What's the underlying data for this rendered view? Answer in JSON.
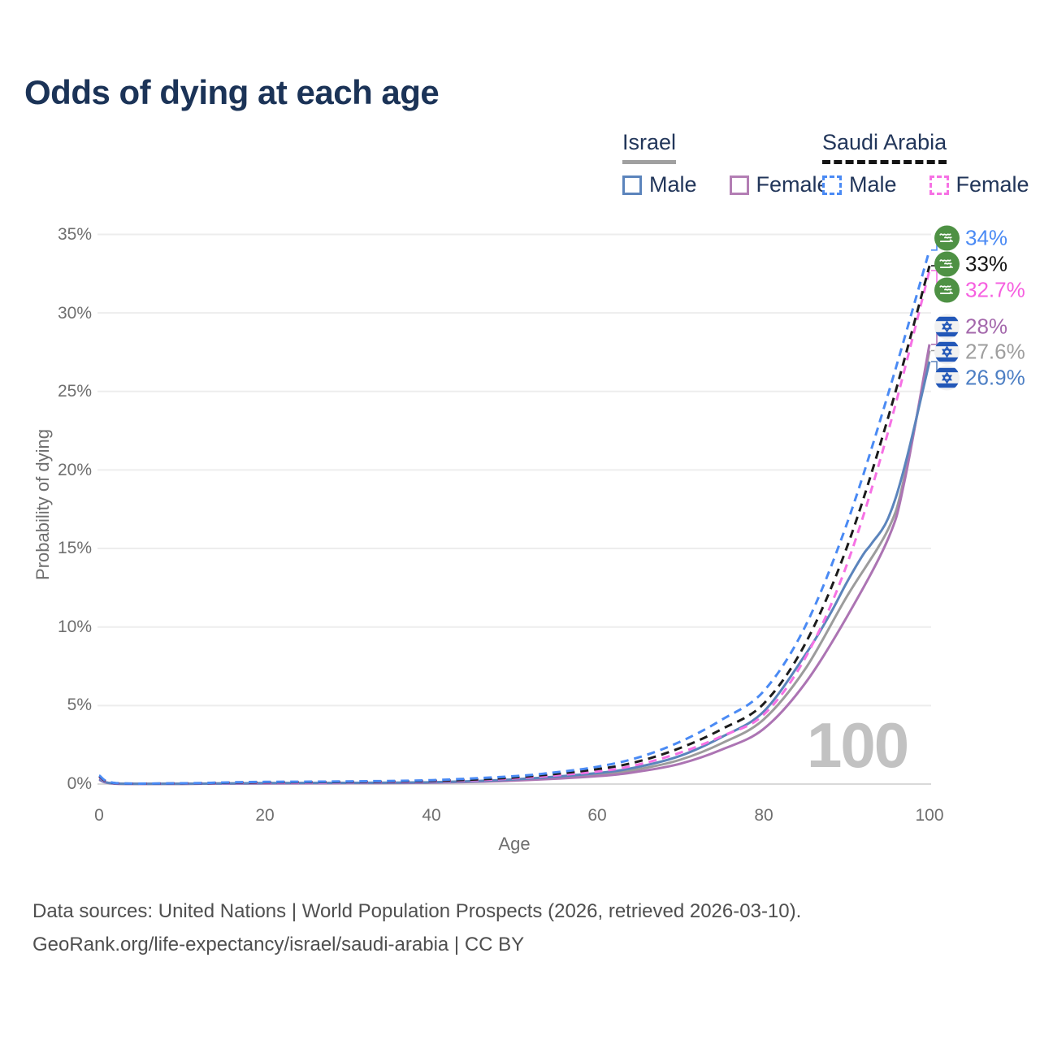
{
  "title": "Odds of dying at each age",
  "legend": {
    "israel": {
      "title": "Israel",
      "line_style": "solid",
      "underline_color": "#a0a0a0",
      "items": [
        {
          "label": "Male",
          "color": "#5b84bc"
        },
        {
          "label": "Female",
          "color": "#b37eb4"
        }
      ]
    },
    "saudi": {
      "title": "Saudi Arabia",
      "line_style": "dashed",
      "underline_color": "#141414",
      "items": [
        {
          "label": "Male",
          "color": "#4a8af4"
        },
        {
          "label": "Female",
          "color": "#f671e4"
        }
      ]
    }
  },
  "watermark": "100",
  "footer": {
    "line1": "Data sources: United Nations | World Population Prospects (2026, retrieved 2026-03-10).",
    "line2": "GeoRank.org/life-expectancy/israel/saudi-arabia | CC BY"
  },
  "colors": {
    "title": "#1b3357",
    "axis_text": "#6f6f6f",
    "gridline": "#ededed",
    "zero_line": "#d9d9d9",
    "watermark": "#c2c2c2",
    "saudi_flag_green": "#4e9144",
    "israel_flag_blue": "#2257b8"
  },
  "chart_data": {
    "type": "line",
    "title": "Odds of dying at each age",
    "xlabel": "Age",
    "ylabel": "Probability of dying",
    "xlim": [
      0,
      100
    ],
    "ylim": [
      0,
      35
    ],
    "grid": "horizontal-only",
    "x_tick_labels": [
      "0",
      "20",
      "40",
      "60",
      "80",
      "100"
    ],
    "x_tick_values": [
      0,
      20,
      40,
      60,
      80,
      100
    ],
    "y_tick_labels": [
      "0%",
      "5%",
      "10%",
      "15%",
      "20%",
      "25%",
      "30%",
      "35%"
    ],
    "y_tick_values": [
      0,
      5,
      10,
      15,
      20,
      25,
      30,
      35
    ],
    "legend_position": "top-right",
    "series": [
      {
        "name": "Israel Both sexes",
        "color": "#9c9c9c",
        "dash": false,
        "end_label": "27.6%",
        "end_value": 27.6,
        "label_row": 4,
        "points": [
          [
            0,
            0.3
          ],
          [
            2,
            0.025
          ],
          [
            10,
            0.018
          ],
          [
            15,
            0.035
          ],
          [
            20,
            0.05
          ],
          [
            30,
            0.07
          ],
          [
            40,
            0.1
          ],
          [
            50,
            0.26
          ],
          [
            60,
            0.6
          ],
          [
            65,
            0.95
          ],
          [
            70,
            1.55
          ],
          [
            75,
            2.6
          ],
          [
            80,
            4.1
          ],
          [
            85,
            7.3
          ],
          [
            90,
            11.9
          ],
          [
            95,
            16.2
          ],
          [
            97,
            19.6
          ],
          [
            100,
            27.6
          ]
        ]
      },
      {
        "name": "Israel Female",
        "color": "#ac74b3",
        "dash": false,
        "end_label": "28%",
        "end_value": 28,
        "label_row": 3,
        "points": [
          [
            0,
            0.27
          ],
          [
            2,
            0.02
          ],
          [
            10,
            0.015
          ],
          [
            15,
            0.03
          ],
          [
            20,
            0.04
          ],
          [
            30,
            0.06
          ],
          [
            40,
            0.09
          ],
          [
            50,
            0.22
          ],
          [
            60,
            0.5
          ],
          [
            65,
            0.8
          ],
          [
            70,
            1.3
          ],
          [
            75,
            2.2
          ],
          [
            80,
            3.5
          ],
          [
            85,
            6.4
          ],
          [
            90,
            10.6
          ],
          [
            95,
            15.6
          ],
          [
            97,
            19.3
          ],
          [
            100,
            28
          ]
        ]
      },
      {
        "name": "Israel Male",
        "color": "#5b84bc",
        "dash": false,
        "end_label": "26.9%",
        "end_value": 26.9,
        "label_row": 5,
        "points": [
          [
            0,
            0.32
          ],
          [
            2,
            0.03
          ],
          [
            10,
            0.02
          ],
          [
            15,
            0.04
          ],
          [
            20,
            0.06
          ],
          [
            30,
            0.08
          ],
          [
            40,
            0.12
          ],
          [
            50,
            0.3
          ],
          [
            60,
            0.7
          ],
          [
            65,
            1.1
          ],
          [
            70,
            1.8
          ],
          [
            75,
            3.0
          ],
          [
            80,
            4.6
          ],
          [
            85,
            8.2
          ],
          [
            88,
            10.8
          ],
          [
            90,
            12.8
          ],
          [
            92,
            14.6
          ],
          [
            93,
            15.3
          ],
          [
            95,
            16.9
          ],
          [
            97,
            20.2
          ],
          [
            100,
            26.9
          ]
        ]
      },
      {
        "name": "Saudi Arabia Female",
        "color": "#f671e4",
        "dash": true,
        "end_label": "32.7%",
        "end_value": 32.7,
        "label_row": 2,
        "points": [
          [
            0,
            0.45
          ],
          [
            2,
            0.04
          ],
          [
            10,
            0.035
          ],
          [
            15,
            0.06
          ],
          [
            20,
            0.08
          ],
          [
            30,
            0.11
          ],
          [
            40,
            0.17
          ],
          [
            50,
            0.36
          ],
          [
            60,
            0.8
          ],
          [
            65,
            1.25
          ],
          [
            70,
            2.0
          ],
          [
            75,
            3.05
          ],
          [
            80,
            4.4
          ],
          [
            85,
            8.0
          ],
          [
            90,
            13.9
          ],
          [
            95,
            22.4
          ],
          [
            100,
            32.7
          ]
        ]
      },
      {
        "name": "Saudi Arabia Both sexes",
        "color": "#1c1c1c",
        "dash": true,
        "end_label": "33%",
        "end_value": 33,
        "label_row": 1,
        "points": [
          [
            0,
            0.5
          ],
          [
            2,
            0.05
          ],
          [
            10,
            0.04
          ],
          [
            15,
            0.08
          ],
          [
            20,
            0.11
          ],
          [
            30,
            0.14
          ],
          [
            40,
            0.2
          ],
          [
            50,
            0.42
          ],
          [
            60,
            0.95
          ],
          [
            65,
            1.45
          ],
          [
            70,
            2.3
          ],
          [
            75,
            3.5
          ],
          [
            80,
            5.1
          ],
          [
            85,
            8.9
          ],
          [
            90,
            15.0
          ],
          [
            95,
            23.3
          ],
          [
            100,
            33
          ]
        ]
      },
      {
        "name": "Saudi Arabia Male",
        "color": "#4a8af4",
        "dash": true,
        "end_label": "34%",
        "end_value": 34,
        "label_row": 0,
        "points": [
          [
            0,
            0.55
          ],
          [
            2,
            0.06
          ],
          [
            10,
            0.05
          ],
          [
            15,
            0.1
          ],
          [
            20,
            0.14
          ],
          [
            30,
            0.17
          ],
          [
            40,
            0.25
          ],
          [
            50,
            0.5
          ],
          [
            55,
            0.75
          ],
          [
            60,
            1.1
          ],
          [
            65,
            1.7
          ],
          [
            70,
            2.7
          ],
          [
            75,
            4.1
          ],
          [
            80,
            5.9
          ],
          [
            85,
            10.0
          ],
          [
            90,
            16.5
          ],
          [
            95,
            24.8
          ],
          [
            100,
            34
          ]
        ]
      }
    ]
  }
}
